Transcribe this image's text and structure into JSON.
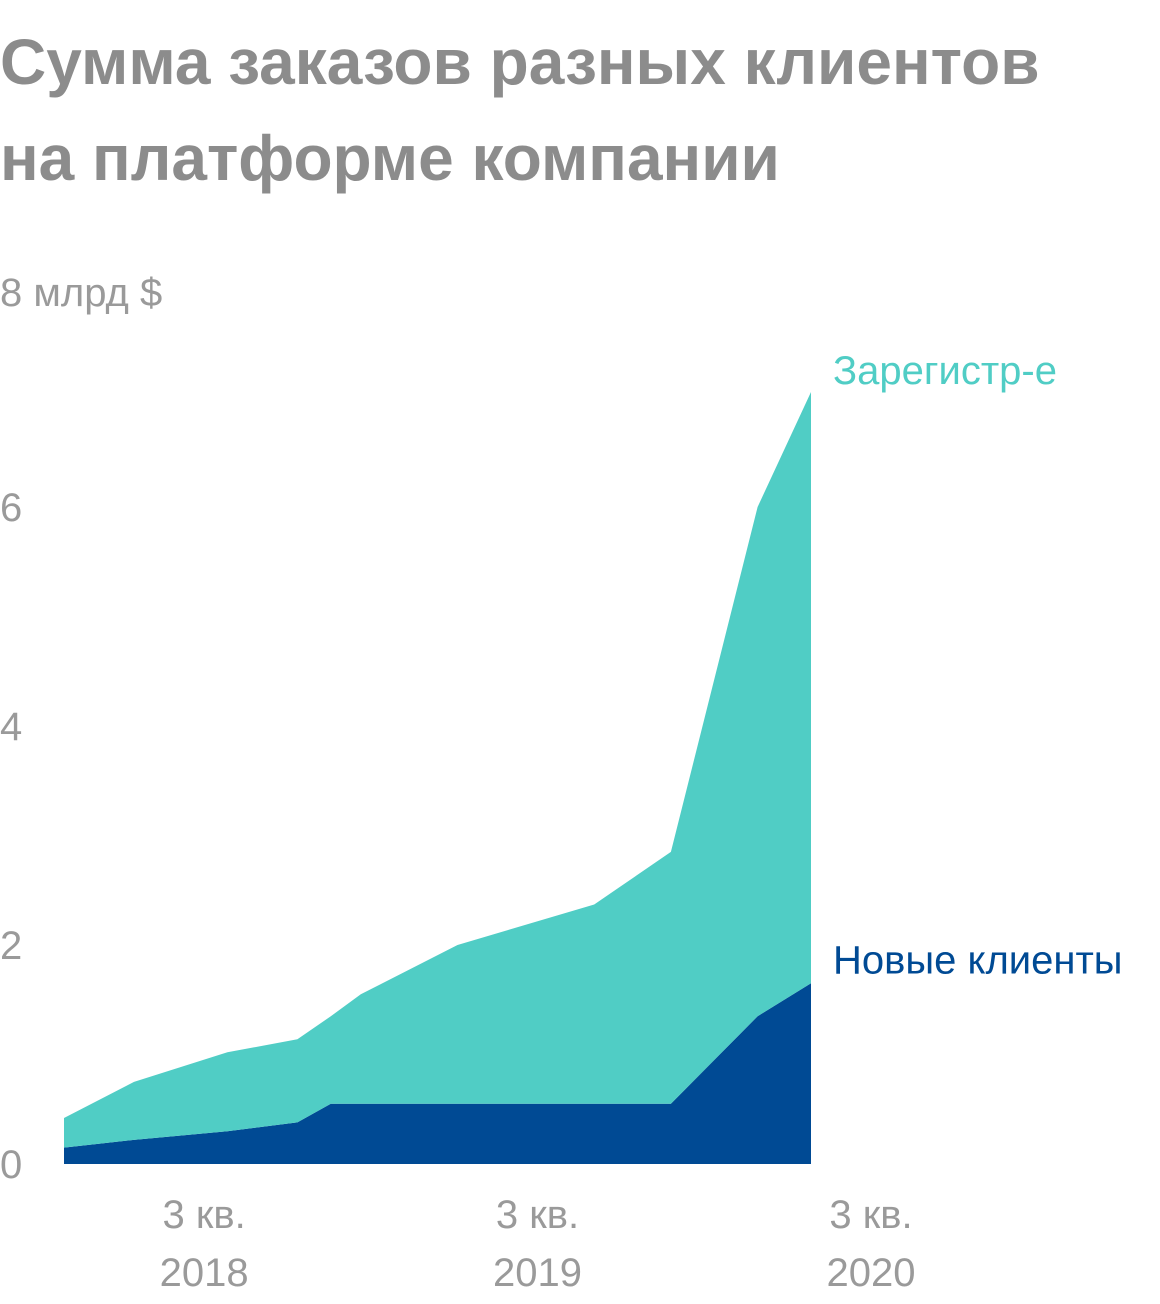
{
  "title_lines": [
    "Сумма заказов разных клиентов",
    "на платформе компании"
  ],
  "chart_data": {
    "type": "area",
    "stacked": true,
    "title": "Сумма заказов разных клиентов на платформе компании",
    "ylabel": "8 млрд $",
    "ylim": [
      0,
      8
    ],
    "yticks": [
      0,
      2,
      4,
      6
    ],
    "x": [
      2017.96,
      2018.17,
      2018.45,
      2018.66,
      2018.76,
      2018.85,
      2019.14,
      2019.55,
      2019.78,
      2020.04,
      2020.2
    ],
    "xticks": [
      {
        "x": 2018.38,
        "lines": [
          "3 кв.",
          "2018"
        ]
      },
      {
        "x": 2019.38,
        "lines": [
          "3 кв.",
          "2019"
        ]
      },
      {
        "x": 2020.38,
        "lines": [
          "3 кв.",
          "2020"
        ]
      }
    ],
    "series": [
      {
        "name": "Новые клиенты",
        "color": "#004a94",
        "values": [
          0.15,
          0.22,
          0.3,
          0.38,
          0.55,
          0.55,
          0.55,
          0.55,
          0.55,
          1.35,
          1.65
        ]
      },
      {
        "name": "Зарегистр-е",
        "color": "#50cdc5",
        "values": [
          0.27,
          0.53,
          0.72,
          0.76,
          0.8,
          1.0,
          1.45,
          1.82,
          2.3,
          4.65,
          5.4
        ]
      }
    ],
    "grid": false,
    "legend": "inline-right"
  }
}
